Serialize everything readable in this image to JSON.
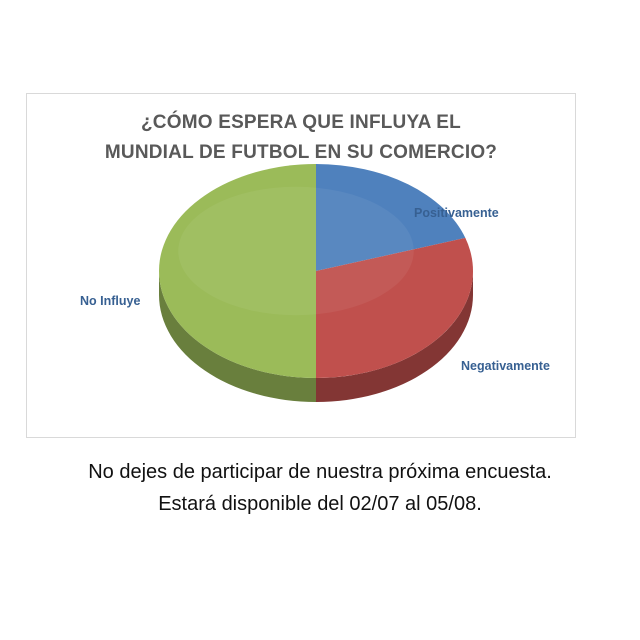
{
  "colors": {
    "positivamente": "#4f81bd",
    "negativamente": "#c0504d",
    "no_influye": "#9bbb59",
    "title_text": "#595959",
    "label_text": "#376092"
  },
  "chart_data": {
    "type": "pie",
    "style": "3d",
    "title": "¿CÓMO ESPERA QUE INFLUYA EL MUNDIAL DE FUTBOL EN SU COMERCIO?",
    "title_lines": [
      "¿CÓMO ESPERA QUE INFLUYA EL",
      "MUNDIAL DE FUTBOL EN SU COMERCIO?"
    ],
    "categories": [
      "Positivamente",
      "Negativamente",
      "No Influye"
    ],
    "values": [
      20,
      30,
      50
    ],
    "colors": [
      "#4f81bd",
      "#c0504d",
      "#9bbb59"
    ],
    "legend": "none"
  },
  "caption": {
    "line1": "No dejes de participar de nuestra próxima encuesta.",
    "line2": "Estará disponible del 02/07 al 05/08."
  }
}
